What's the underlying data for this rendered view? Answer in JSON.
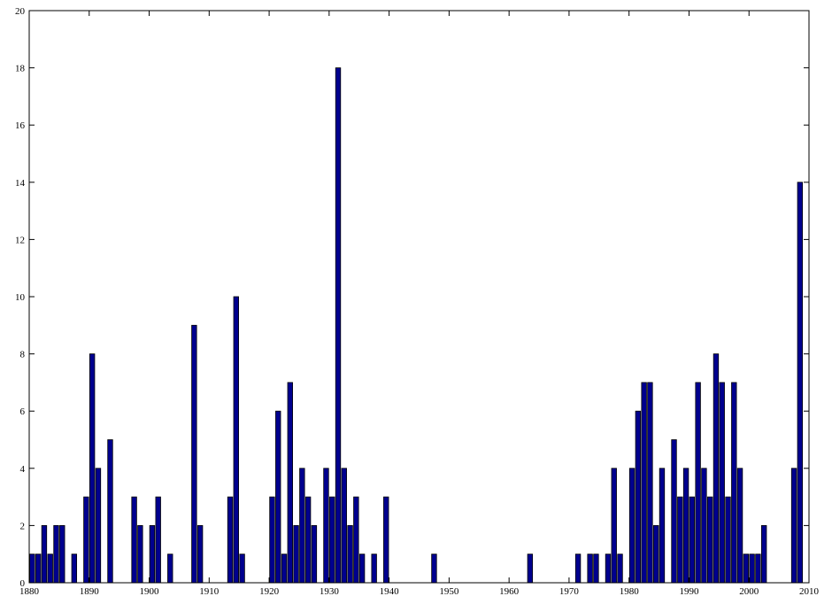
{
  "chart_data": {
    "type": "bar",
    "title": "",
    "xlabel": "",
    "ylabel": "",
    "xlim": [
      1880,
      2010
    ],
    "ylim": [
      0,
      20
    ],
    "x_ticks": [
      "1880",
      "1890",
      "1900",
      "1910",
      "1920",
      "1930",
      "1940",
      "1950",
      "1960",
      "1970",
      "1980",
      "1990",
      "2000",
      "2010"
    ],
    "y_ticks": [
      "0",
      "2",
      "4",
      "6",
      "8",
      "10",
      "12",
      "14",
      "16",
      "18",
      "20"
    ],
    "grid": false,
    "legend": "none",
    "bar_color": "#00008f",
    "bar_edge_color": "#000000",
    "data": [
      {
        "x": 1880,
        "y": 1
      },
      {
        "x": 1881,
        "y": 1
      },
      {
        "x": 1882,
        "y": 2
      },
      {
        "x": 1883,
        "y": 1
      },
      {
        "x": 1884,
        "y": 2
      },
      {
        "x": 1885,
        "y": 2
      },
      {
        "x": 1887,
        "y": 1
      },
      {
        "x": 1889,
        "y": 3
      },
      {
        "x": 1890,
        "y": 8
      },
      {
        "x": 1891,
        "y": 4
      },
      {
        "x": 1893,
        "y": 5
      },
      {
        "x": 1897,
        "y": 3
      },
      {
        "x": 1898,
        "y": 2
      },
      {
        "x": 1900,
        "y": 2
      },
      {
        "x": 1901,
        "y": 3
      },
      {
        "x": 1903,
        "y": 1
      },
      {
        "x": 1907,
        "y": 9
      },
      {
        "x": 1908,
        "y": 2
      },
      {
        "x": 1913,
        "y": 3
      },
      {
        "x": 1914,
        "y": 10
      },
      {
        "x": 1915,
        "y": 1
      },
      {
        "x": 1920,
        "y": 3
      },
      {
        "x": 1921,
        "y": 6
      },
      {
        "x": 1922,
        "y": 1
      },
      {
        "x": 1923,
        "y": 7
      },
      {
        "x": 1924,
        "y": 2
      },
      {
        "x": 1925,
        "y": 4
      },
      {
        "x": 1926,
        "y": 3
      },
      {
        "x": 1927,
        "y": 2
      },
      {
        "x": 1929,
        "y": 4
      },
      {
        "x": 1930,
        "y": 3
      },
      {
        "x": 1931,
        "y": 18
      },
      {
        "x": 1932,
        "y": 4
      },
      {
        "x": 1933,
        "y": 2
      },
      {
        "x": 1934,
        "y": 3
      },
      {
        "x": 1935,
        "y": 1
      },
      {
        "x": 1937,
        "y": 1
      },
      {
        "x": 1939,
        "y": 3
      },
      {
        "x": 1947,
        "y": 1
      },
      {
        "x": 1963,
        "y": 1
      },
      {
        "x": 1971,
        "y": 1
      },
      {
        "x": 1973,
        "y": 1
      },
      {
        "x": 1974,
        "y": 1
      },
      {
        "x": 1976,
        "y": 1
      },
      {
        "x": 1977,
        "y": 4
      },
      {
        "x": 1978,
        "y": 1
      },
      {
        "x": 1980,
        "y": 4
      },
      {
        "x": 1981,
        "y": 6
      },
      {
        "x": 1982,
        "y": 7
      },
      {
        "x": 1983,
        "y": 7
      },
      {
        "x": 1984,
        "y": 2
      },
      {
        "x": 1985,
        "y": 4
      },
      {
        "x": 1987,
        "y": 5
      },
      {
        "x": 1988,
        "y": 3
      },
      {
        "x": 1989,
        "y": 4
      },
      {
        "x": 1990,
        "y": 3
      },
      {
        "x": 1991,
        "y": 7
      },
      {
        "x": 1992,
        "y": 4
      },
      {
        "x": 1993,
        "y": 3
      },
      {
        "x": 1994,
        "y": 8
      },
      {
        "x": 1995,
        "y": 7
      },
      {
        "x": 1996,
        "y": 3
      },
      {
        "x": 1997,
        "y": 7
      },
      {
        "x": 1998,
        "y": 4
      },
      {
        "x": 1999,
        "y": 1
      },
      {
        "x": 2000,
        "y": 1
      },
      {
        "x": 2001,
        "y": 1
      },
      {
        "x": 2002,
        "y": 2
      },
      {
        "x": 2007,
        "y": 4
      },
      {
        "x": 2008,
        "y": 14
      }
    ]
  }
}
